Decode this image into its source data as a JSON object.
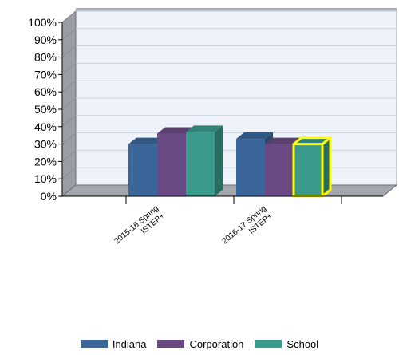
{
  "chart_data": {
    "type": "bar",
    "categories": [
      "2015-16 Spring ISTEP+",
      "2016-17 Spring ISTEP+"
    ],
    "category_lines": [
      [
        "2015-16 Spring",
        "ISTEP+"
      ],
      [
        "2016-17 Spring",
        "ISTEP+"
      ]
    ],
    "series": [
      {
        "name": "Indiana",
        "color": "#3b6699",
        "values": [
          30,
          33
        ]
      },
      {
        "name": "Corporation",
        "color": "#6a4a84",
        "values": [
          36,
          30
        ]
      },
      {
        "name": "School",
        "color": "#3a9a8c",
        "values": [
          37,
          30
        ]
      }
    ],
    "y_ticks": [
      "0%",
      "10%",
      "20%",
      "30%",
      "40%",
      "50%",
      "60%",
      "70%",
      "80%",
      "90%",
      "100%"
    ],
    "ylim": [
      0,
      100
    ],
    "grid": true,
    "legend_position": "bottom",
    "highlighted": {
      "series": "School",
      "category_index": 1,
      "outline_color": "#ffff00"
    }
  }
}
